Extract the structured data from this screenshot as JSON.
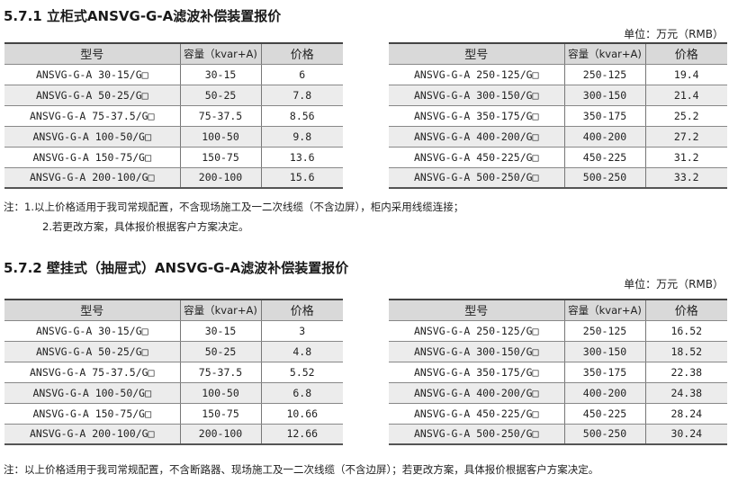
{
  "headers": {
    "model": "型号",
    "capacity": "容量（kvar+A)",
    "price": "价格"
  },
  "unit": "单位：万元（RMB）",
  "section1": {
    "title": "5.7.1 立柜式ANSVG-G-A滤波补偿装置报价",
    "left": [
      [
        "ANSVG-G-A 30-15/G□",
        "30-15",
        "6"
      ],
      [
        "ANSVG-G-A 50-25/G□",
        "50-25",
        "7.8"
      ],
      [
        "ANSVG-G-A 75-37.5/G□",
        "75-37.5",
        "8.56"
      ],
      [
        "ANSVG-G-A 100-50/G□",
        "100-50",
        "9.8"
      ],
      [
        "ANSVG-G-A 150-75/G□",
        "150-75",
        "13.6"
      ],
      [
        "ANSVG-G-A 200-100/G□",
        "200-100",
        "15.6"
      ]
    ],
    "right": [
      [
        "ANSVG-G-A 250-125/G□",
        "250-125",
        "19.4"
      ],
      [
        "ANSVG-G-A 300-150/G□",
        "300-150",
        "21.4"
      ],
      [
        "ANSVG-G-A 350-175/G□",
        "350-175",
        "25.2"
      ],
      [
        "ANSVG-G-A 400-200/G□",
        "400-200",
        "27.2"
      ],
      [
        "ANSVG-G-A 450-225/G□",
        "450-225",
        "31.2"
      ],
      [
        "ANSVG-G-A 500-250/G□",
        "500-250",
        "33.2"
      ]
    ],
    "note1": "注：1.以上价格适用于我司常规配置，不含现场施工及一二次线缆（不含边屏），柜内采用线缆连接；",
    "note2": "2.若更改方案，具体报价根据客户方案决定。"
  },
  "section2": {
    "title": "5.7.2 壁挂式（抽屉式）ANSVG-G-A滤波补偿装置报价",
    "left": [
      [
        "ANSVG-G-A 30-15/G□",
        "30-15",
        "3"
      ],
      [
        "ANSVG-G-A 50-25/G□",
        "50-25",
        "4.8"
      ],
      [
        "ANSVG-G-A 75-37.5/G□",
        "75-37.5",
        "5.52"
      ],
      [
        "ANSVG-G-A 100-50/G□",
        "100-50",
        "6.8"
      ],
      [
        "ANSVG-G-A 150-75/G□",
        "150-75",
        "10.66"
      ],
      [
        "ANSVG-G-A 200-100/G□",
        "200-100",
        "12.66"
      ]
    ],
    "right": [
      [
        "ANSVG-G-A 250-125/G□",
        "250-125",
        "16.52"
      ],
      [
        "ANSVG-G-A 300-150/G□",
        "300-150",
        "18.52"
      ],
      [
        "ANSVG-G-A 350-175/G□",
        "350-175",
        "22.38"
      ],
      [
        "ANSVG-G-A 400-200/G□",
        "400-200",
        "24.38"
      ],
      [
        "ANSVG-G-A 450-225/G□",
        "450-225",
        "28.24"
      ],
      [
        "ANSVG-G-A 500-250/G□",
        "500-250",
        "30.24"
      ]
    ],
    "note": "注：以上价格适用于我司常规配置，不含断路器、现场施工及一二次线缆（不含边屏）；若更改方案，具体报价根据客户方案决定。"
  }
}
